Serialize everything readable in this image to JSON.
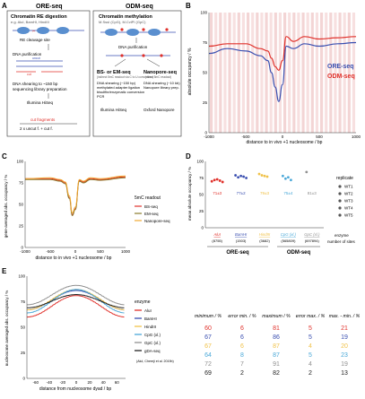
{
  "panels": {
    "A": {
      "letter": "A",
      "ore_title": "ORE-seq",
      "odm_title": "ODM-seq",
      "ore": {
        "box_title": "Chromatin RE digestion",
        "box_sub": "e.g. AluI, BamHI, HindIII",
        "cleavage": "RE cleavage site",
        "purification": "DNA purification",
        "uncut": "uncut",
        "cut": "cut",
        "shearing": "DNA shearing to ~150 bp",
        "library": "sequencing library preparation",
        "platform": "Illumina HiSeq",
        "formula_top": "cut fragments",
        "formula_bottom": "2 x uncut f. + cut f."
      },
      "odm": {
        "box_title": "Chromatin methylation",
        "box_sub": "M.SssI (CpG), M.CviPI (GpC)",
        "purification": "DNA purification",
        "bs_title": "BS- or EM-seq",
        "bs_sub": "(indirect 5mC readout via C to U conversion)",
        "bs_lines": [
          "DNA shearing (~150 bp)",
          "methylated adapter ligation",
          "bisulfite/enzymatic conversion",
          "PCR"
        ],
        "bs_platform": "Illumina HiSeq",
        "np_title": "Nanopore-seq",
        "np_sub": "(direct 5mC readout)",
        "np_lines": [
          "DNA shearing (~10 kb)",
          "Nanopore library prep."
        ],
        "np_platform": "Oxford Nanopore"
      }
    },
    "B": {
      "letter": "B",
      "ylabel": "absolute occupancy / %",
      "xlabel": "distance to in vivo +1 nucleosome / bp",
      "xticks": [
        "-1000",
        "-500",
        "0",
        "500",
        "1000"
      ],
      "yticks": [
        "0",
        "25",
        "50",
        "75",
        "100"
      ],
      "legend": [
        {
          "label": "ORE-seq",
          "color": "#3a4fb0"
        },
        {
          "label": "ODM-seq",
          "color": "#e0312b"
        }
      ]
    },
    "C": {
      "letter": "C",
      "ylabel": "gene-averaged abs. occupancy / %",
      "xlabel": "distance to in vivo +1 nucleosome / bp",
      "xticks": [
        "-1000",
        "-500",
        "0",
        "500",
        "1000"
      ],
      "yticks": [
        "0",
        "25",
        "50",
        "75",
        "100"
      ],
      "legend_title": "5mC readout",
      "legend": [
        {
          "label": "BS-seq",
          "color": "#e0312b"
        },
        {
          "label": "EM-seq",
          "color": "#8a7a2a"
        },
        {
          "label": "Nanopore-seq",
          "color": "#f0a830"
        }
      ]
    },
    "D": {
      "letter": "D",
      "ylabel": "mean absolute occupancy / %",
      "yticks": [
        "0",
        "25",
        "50",
        "75",
        "100"
      ],
      "groups": [
        {
          "name": "AluI",
          "sites": "(8755)",
          "mean": "71±3",
          "color": "#e0312b"
        },
        {
          "name": "BamHI",
          "sites": "(1503)",
          "mean": "77±2",
          "color": "#3a4fb0"
        },
        {
          "name": "HindIII",
          "sites": "(3682)",
          "mean": "79±3",
          "color": "#f0c24a"
        },
        {
          "name": "CpG (xl.)",
          "sites": "(565809)",
          "mean": "75±4",
          "color": "#4aa8d8"
        },
        {
          "name": "GpC (xl.)",
          "sites": "(697894)",
          "mean": "81±3",
          "color": "#909090"
        }
      ],
      "ore_label": "ORE-seq",
      "odm_label": "ODM-seq",
      "enzyme_label": "enzyme",
      "sites_label": "number of sites",
      "replicate_title": "replicate",
      "replicates": [
        "WT1",
        "WT2",
        "WT3",
        "WT4",
        "WT5"
      ]
    },
    "E": {
      "letter": "E",
      "ylabel": "nucleosome averaged abs. occupancy / %",
      "xlabel": "distance from nucleosome dyad / bp",
      "xticks": [
        "-60",
        "-40",
        "-20",
        "0",
        "20",
        "40",
        "60"
      ],
      "yticks": [
        "0",
        "25",
        "50",
        "75",
        "100"
      ],
      "legend_title": "enzyme",
      "legend": [
        {
          "label": "AluI",
          "color": "#e0312b"
        },
        {
          "label": "BamHI",
          "color": "#3a4fb0"
        },
        {
          "label": "HindIII",
          "color": "#f0c24a"
        },
        {
          "label": "CpG (xl.)",
          "color": "#4aa8d8"
        },
        {
          "label": "GpC (xl.)",
          "color": "#909090"
        },
        {
          "label": "gDA-seq",
          "color": "#222222"
        }
      ],
      "legend_note": "(AluI, Chereji et al. 2019b)",
      "table_headers": [
        "minimum / %",
        "error min. / %",
        "maximum / %",
        "error max. / %",
        "max. - min. / %"
      ],
      "table_rows": [
        {
          "color": "#e0312b",
          "values": [
            "60",
            "6",
            "81",
            "5",
            "21"
          ]
        },
        {
          "color": "#3a4fb0",
          "values": [
            "67",
            "6",
            "86",
            "5",
            "19"
          ]
        },
        {
          "color": "#f0c24a",
          "values": [
            "67",
            "6",
            "87",
            "4",
            "20"
          ]
        },
        {
          "color": "#4aa8d8",
          "values": [
            "64",
            "8",
            "87",
            "5",
            "23"
          ]
        },
        {
          "color": "#909090",
          "values": [
            "72",
            "7",
            "91",
            "4",
            "19"
          ]
        },
        {
          "color": "#222222",
          "values": [
            "69",
            "2",
            "82",
            "2",
            "13"
          ]
        }
      ]
    }
  },
  "chart_data": [
    {
      "panel": "B",
      "type": "line",
      "xlabel": "distance to in vivo +1 nucleosome / bp",
      "ylabel": "absolute occupancy / %",
      "xlim": [
        -1000,
        1000
      ],
      "ylim": [
        0,
        100
      ],
      "series": [
        {
          "name": "ORE-seq",
          "x": [
            -1000,
            -750,
            -500,
            -300,
            -200,
            -150,
            -100,
            -50,
            0,
            50,
            150,
            300,
            500,
            750,
            1000
          ],
          "y": [
            66,
            70,
            68,
            64,
            60,
            50,
            38,
            26,
            40,
            72,
            70,
            74,
            72,
            74,
            75
          ]
        },
        {
          "name": "ODM-seq",
          "x": [
            -1000,
            -750,
            -500,
            -300,
            -200,
            -150,
            -100,
            -50,
            0,
            50,
            150,
            300,
            500,
            750,
            1000
          ],
          "y": [
            72,
            74,
            74,
            70,
            68,
            62,
            55,
            52,
            60,
            80,
            76,
            80,
            78,
            79,
            80
          ]
        }
      ]
    },
    {
      "panel": "C",
      "type": "line",
      "xlabel": "distance to in vivo +1 nucleosome / bp",
      "ylabel": "gene-averaged abs. occupancy / %",
      "xlim": [
        -1000,
        1000
      ],
      "ylim": [
        0,
        100
      ],
      "series": [
        {
          "name": "BS-seq",
          "x": [
            -1000,
            -500,
            -300,
            -200,
            -120,
            -60,
            0,
            80,
            160,
            300,
            500,
            1000
          ],
          "y": [
            80,
            80,
            78,
            75,
            58,
            38,
            45,
            78,
            76,
            80,
            79,
            82
          ]
        },
        {
          "name": "EM-seq",
          "x": [
            -1000,
            -500,
            -300,
            -200,
            -120,
            -60,
            0,
            80,
            160,
            300,
            500,
            1000
          ],
          "y": [
            79,
            79,
            77,
            74,
            57,
            37,
            44,
            77,
            75,
            79,
            78,
            81
          ]
        },
        {
          "name": "Nanopore-seq",
          "x": [
            -1000,
            -500,
            -300,
            -200,
            -120,
            -60,
            0,
            80,
            160,
            300,
            500,
            1000
          ],
          "y": [
            80,
            81,
            79,
            76,
            60,
            40,
            47,
            79,
            77,
            81,
            80,
            83
          ]
        }
      ]
    },
    {
      "panel": "D",
      "type": "scatter",
      "ylabel": "mean absolute occupancy / %",
      "ylim": [
        0,
        100
      ],
      "categories": [
        "AluI",
        "BamHI",
        "HindIII",
        "CpG (xl.)",
        "GpC (xl.)"
      ],
      "series": [
        {
          "category": "AluI",
          "values": [
            70,
            72,
            73,
            71,
            69
          ]
        },
        {
          "category": "BamHI",
          "values": [
            79,
            76,
            78,
            77,
            75
          ]
        },
        {
          "category": "HindIII",
          "values": [
            81,
            79,
            78,
            77
          ]
        },
        {
          "category": "CpG (xl.)",
          "values": [
            78,
            74,
            76,
            72
          ]
        },
        {
          "category": "GpC (xl.)",
          "values": [
            84
          ]
        }
      ]
    },
    {
      "panel": "E",
      "type": "line",
      "xlabel": "distance from nucleosome dyad / bp",
      "ylabel": "nucleosome averaged abs. occupancy / %",
      "xlim": [
        -73,
        73
      ],
      "ylim": [
        0,
        100
      ],
      "series": [
        {
          "name": "AluI",
          "min": 60,
          "max": 81
        },
        {
          "name": "BamHI",
          "min": 67,
          "max": 86
        },
        {
          "name": "HindIII",
          "min": 67,
          "max": 87
        },
        {
          "name": "CpG (xl.)",
          "min": 64,
          "max": 87
        },
        {
          "name": "GpC (xl.)",
          "min": 72,
          "max": 91
        },
        {
          "name": "gDA-seq",
          "min": 69,
          "max": 82
        }
      ]
    }
  ]
}
